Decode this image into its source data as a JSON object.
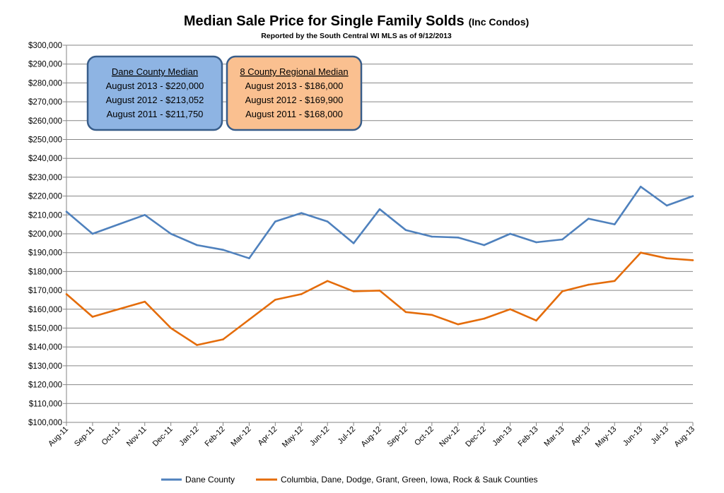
{
  "chart_data": {
    "type": "line",
    "title": "Median Sale Price for Single Family Solds",
    "title_suffix": "(Inc Condos)",
    "subtitle": "Reported by the South Central WI MLS as of 9/12/2013",
    "xlabel": "",
    "ylabel": "",
    "ylim": [
      100000,
      300000
    ],
    "y_step": 10000,
    "grid": "horizontal",
    "legend_position": "bottom",
    "categories": [
      "Aug-11",
      "Sep-11",
      "Oct-11",
      "Nov-11",
      "Dec-11",
      "Jan-12",
      "Feb-12",
      "Mar-12",
      "Apr-12",
      "May-12",
      "Jun-12",
      "Jul-12",
      "Aug-12",
      "Sep-12",
      "Oct-12",
      "Nov-12",
      "Dec-12",
      "Jan-13",
      "Feb-13",
      "Mar-13",
      "Apr-13",
      "May-13",
      "Jun-13",
      "Jul-13",
      "Aug-13"
    ],
    "y_tick_labels": [
      "$100,000",
      "$110,000",
      "$120,000",
      "$130,000",
      "$140,000",
      "$150,000",
      "$160,000",
      "$170,000",
      "$180,000",
      "$190,000",
      "$200,000",
      "$210,000",
      "$220,000",
      "$230,000",
      "$240,000",
      "$250,000",
      "$260,000",
      "$270,000",
      "$280,000",
      "$290,000",
      "$300,000"
    ],
    "series": [
      {
        "name": "Dane County",
        "color": "#4F81BD",
        "values": [
          211750,
          200000,
          205000,
          210000,
          200000,
          194000,
          191500,
          187000,
          206500,
          211000,
          206500,
          195000,
          213052,
          202000,
          198500,
          198000,
          194000,
          200000,
          195500,
          197000,
          208000,
          205000,
          225000,
          215000,
          220000
        ]
      },
      {
        "name": "Columbia, Dane, Dodge, Grant, Green, Iowa, Rock & Sauk Counties",
        "color": "#E46C0A",
        "values": [
          168000,
          156000,
          160000,
          164000,
          150000,
          141000,
          144000,
          154500,
          165000,
          168000,
          175000,
          169500,
          169900,
          158500,
          157000,
          152000,
          155000,
          160000,
          154000,
          169500,
          173000,
          175000,
          190000,
          187000,
          186000
        ]
      }
    ],
    "annotations": [
      {
        "heading": "Dane  County Median",
        "lines": [
          "August 2013 - $220,000",
          "August 2012 - $213,052",
          "August 2011 - $211,750"
        ],
        "fill": "#8EB4E3",
        "border": "#385D8A"
      },
      {
        "heading": "8 County Regional Median",
        "lines": [
          "August 2013 - $186,000",
          "August 2012 - $169,900",
          "August 2011 - $168,000"
        ],
        "fill": "#FAC090",
        "border": "#385D8A"
      }
    ]
  }
}
